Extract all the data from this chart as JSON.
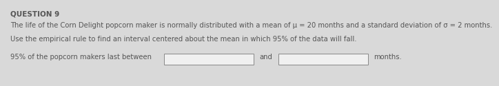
{
  "question_label": "QUESTION 9",
  "line1": "The life of the Corn Delight popcorn maker is normally distributed with a mean of μ = 20 months and a standard deviation of σ = 2 months.",
  "line2": "Use the empirical rule to find an interval centered about the mean in which 95% of the data will fall.",
  "line3_prefix": "95% of the popcorn makers last between",
  "line3_and": "and",
  "line3_suffix": "months.",
  "bg_color": "#d9d9d9",
  "text_color": "#555555",
  "question_fontsize": 7.5,
  "body_fontsize": 7.2
}
